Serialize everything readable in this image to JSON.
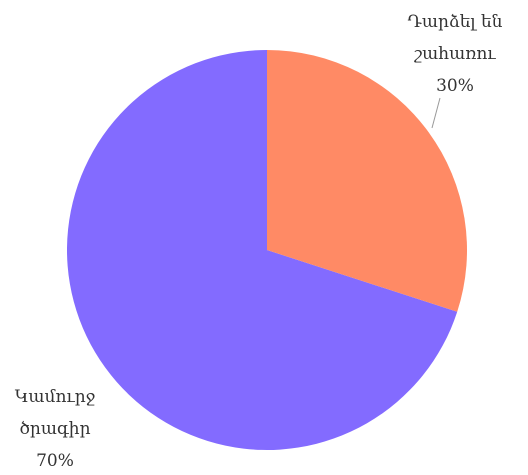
{
  "chart_data": {
    "type": "pie",
    "categories": [
      "Դարձել են շահառու",
      "Կամուրջ ծրագիր"
    ],
    "values": [
      30,
      70
    ],
    "value_labels": [
      "30%",
      "70%"
    ],
    "colors": [
      "#ff8a65",
      "#836bff"
    ]
  }
}
